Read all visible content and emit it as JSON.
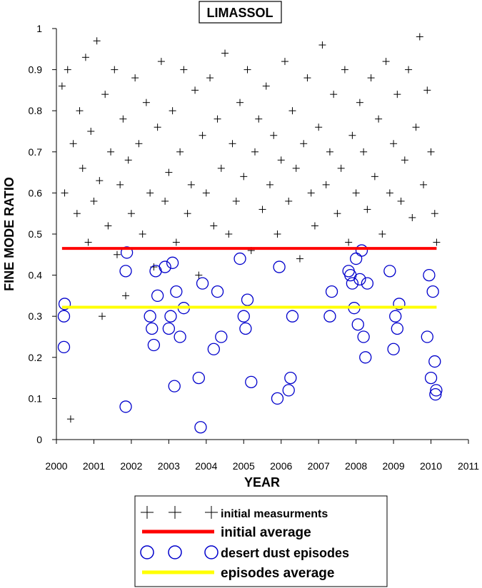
{
  "chart_data": {
    "type": "scatter",
    "title": "LIMASSOL",
    "xlabel": "YEAR",
    "ylabel": "FINE MODE RATIO",
    "xlim": [
      2000,
      2011
    ],
    "ylim": [
      0,
      1
    ],
    "x_ticks": [
      "2000",
      "2001",
      "2002",
      "2003",
      "2004",
      "2005",
      "2006",
      "2007",
      "2008",
      "2009",
      "2010",
      "2011"
    ],
    "y_ticks": [
      "0",
      "0.1",
      "0.2",
      "0.3",
      "0.4",
      "0.5",
      "0.6",
      "0.7",
      "0.8",
      "0.9",
      "1"
    ],
    "grid": false,
    "legend_placement": "below chart",
    "colors": {
      "measurements": "#000000",
      "initial_average": "#ff0000",
      "dust": "#0000cc",
      "episodes_average": "#ffff00"
    },
    "series": [
      {
        "name": "initial measurments",
        "marker": "plus",
        "note_estimated": "dense cloud spanning the full period; points approximated",
        "x": [
          2000.15,
          2000.22,
          2000.3,
          2000.38,
          2000.45,
          2000.55,
          2000.62,
          2000.7,
          2000.78,
          2000.85,
          2000.92,
          2001.0,
          2001.08,
          2001.15,
          2001.22,
          2001.3,
          2001.38,
          2001.45,
          2001.55,
          2001.62,
          2001.7,
          2001.78,
          2001.85,
          2001.92,
          2002.0,
          2002.1,
          2002.2,
          2002.3,
          2002.4,
          2002.5,
          2002.6,
          2002.7,
          2002.8,
          2002.9,
          2003.0,
          2003.1,
          2003.2,
          2003.3,
          2003.4,
          2003.5,
          2003.6,
          2003.7,
          2003.8,
          2003.9,
          2004.0,
          2004.1,
          2004.2,
          2004.3,
          2004.4,
          2004.5,
          2004.6,
          2004.7,
          2004.8,
          2004.9,
          2005.0,
          2005.1,
          2005.2,
          2005.3,
          2005.4,
          2005.5,
          2005.6,
          2005.7,
          2005.8,
          2005.9,
          2006.0,
          2006.1,
          2006.2,
          2006.3,
          2006.4,
          2006.5,
          2006.6,
          2006.7,
          2006.8,
          2006.9,
          2007.0,
          2007.1,
          2007.2,
          2007.3,
          2007.4,
          2007.5,
          2007.6,
          2007.7,
          2007.8,
          2007.9,
          2008.0,
          2008.1,
          2008.2,
          2008.3,
          2008.4,
          2008.5,
          2008.6,
          2008.7,
          2008.8,
          2008.9,
          2009.0,
          2009.1,
          2009.2,
          2009.3,
          2009.4,
          2009.5,
          2009.6,
          2009.7,
          2009.8,
          2009.9,
          2010.0,
          2010.1,
          2010.15
        ],
        "y": [
          0.86,
          0.6,
          0.9,
          0.05,
          0.72,
          0.55,
          0.8,
          0.66,
          0.93,
          0.48,
          0.75,
          0.58,
          0.97,
          0.63,
          0.3,
          0.84,
          0.52,
          0.7,
          0.9,
          0.45,
          0.62,
          0.78,
          0.35,
          0.68,
          0.55,
          0.88,
          0.72,
          0.5,
          0.82,
          0.6,
          0.42,
          0.76,
          0.92,
          0.58,
          0.65,
          0.8,
          0.48,
          0.7,
          0.9,
          0.55,
          0.62,
          0.85,
          0.4,
          0.74,
          0.6,
          0.88,
          0.52,
          0.78,
          0.66,
          0.94,
          0.5,
          0.72,
          0.58,
          0.82,
          0.64,
          0.9,
          0.46,
          0.7,
          0.78,
          0.56,
          0.86,
          0.62,
          0.74,
          0.5,
          0.68,
          0.92,
          0.58,
          0.8,
          0.66,
          0.44,
          0.72,
          0.88,
          0.6,
          0.52,
          0.76,
          0.96,
          0.62,
          0.7,
          0.84,
          0.55,
          0.66,
          0.9,
          0.48,
          0.74,
          0.6,
          0.82,
          0.7,
          0.56,
          0.88,
          0.64,
          0.78,
          0.5,
          0.92,
          0.6,
          0.72,
          0.84,
          0.58,
          0.68,
          0.9,
          0.54,
          0.76,
          0.98,
          0.62,
          0.85,
          0.7,
          0.55,
          0.48
        ]
      },
      {
        "name": "initial average",
        "type": "line",
        "x": [
          2000.15,
          2010.15
        ],
        "y": [
          0.465,
          0.465
        ]
      },
      {
        "name": "desert dust episodes",
        "marker": "circle",
        "x": [
          2000.2,
          2000.2,
          2000.22,
          2001.85,
          2001.88,
          2001.85,
          2002.5,
          2002.55,
          2002.6,
          2002.65,
          2002.7,
          2002.9,
          2003.0,
          2003.05,
          2003.1,
          2003.15,
          2003.2,
          2003.3,
          2003.4,
          2003.8,
          2003.85,
          2003.9,
          2004.2,
          2004.3,
          2004.4,
          2004.9,
          2005.0,
          2005.05,
          2005.1,
          2005.2,
          2005.9,
          2005.95,
          2006.2,
          2006.25,
          2006.3,
          2007.3,
          2007.35,
          2007.8,
          2007.85,
          2007.9,
          2007.95,
          2008.0,
          2008.05,
          2008.1,
          2008.15,
          2008.2,
          2008.25,
          2008.3,
          2008.9,
          2009.0,
          2009.05,
          2009.1,
          2009.15,
          2009.9,
          2009.95,
          2010.0,
          2010.05,
          2010.1,
          2010.12,
          2010.14
        ],
        "y": [
          0.225,
          0.3,
          0.33,
          0.41,
          0.455,
          0.08,
          0.3,
          0.27,
          0.23,
          0.41,
          0.35,
          0.42,
          0.27,
          0.3,
          0.43,
          0.13,
          0.36,
          0.25,
          0.32,
          0.15,
          0.03,
          0.38,
          0.22,
          0.36,
          0.25,
          0.44,
          0.3,
          0.27,
          0.34,
          0.14,
          0.1,
          0.42,
          0.12,
          0.15,
          0.3,
          0.3,
          0.36,
          0.41,
          0.4,
          0.38,
          0.32,
          0.44,
          0.28,
          0.39,
          0.46,
          0.25,
          0.2,
          0.38,
          0.41,
          0.22,
          0.3,
          0.27,
          0.33,
          0.25,
          0.4,
          0.15,
          0.36,
          0.19,
          0.11,
          0.12
        ]
      },
      {
        "name": "episodes average",
        "type": "line",
        "x": [
          2000.15,
          2010.15
        ],
        "y": [
          0.322,
          0.322
        ]
      }
    ],
    "legend": [
      "initial measurments",
      "initial average",
      "desert dust episodes",
      "episodes average"
    ]
  }
}
